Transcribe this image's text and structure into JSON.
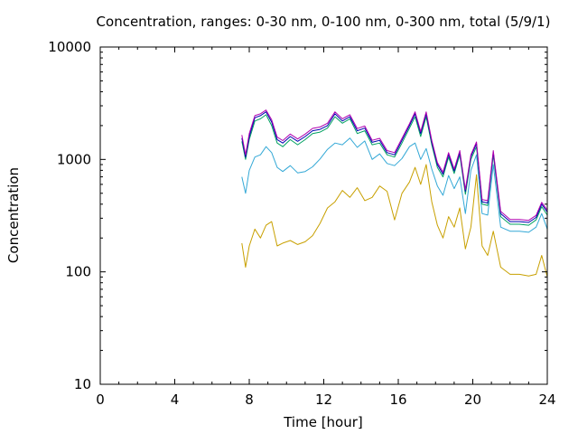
{
  "chart_data": {
    "type": "line",
    "title": "Concentration, ranges: 0-30 nm, 0-100 nm, 0-300 nm, total (5/9/1)",
    "xlabel": "Time [hour]",
    "ylabel": "Concentration",
    "xlim": [
      0,
      24
    ],
    "ylim": [
      10,
      10000
    ],
    "yscale": "log",
    "x_ticks": [
      0,
      4,
      8,
      12,
      16,
      20,
      24
    ],
    "x_tick_labels": [
      "0",
      "4",
      "8",
      "12",
      "16",
      "20",
      "24"
    ],
    "y_ticks": [
      10,
      100,
      1000,
      10000
    ],
    "y_tick_labels": [
      "10",
      "100",
      "1000",
      "10000"
    ],
    "grid": false,
    "legend": "none",
    "series": [
      {
        "color": "#c8a000",
        "x": [
          7.6,
          7.8,
          8.0,
          8.3,
          8.6,
          8.9,
          9.2,
          9.5,
          9.8,
          10.2,
          10.6,
          11.0,
          11.4,
          11.8,
          12.2,
          12.6,
          13.0,
          13.4,
          13.8,
          14.2,
          14.6,
          15.0,
          15.4,
          15.8,
          16.2,
          16.6,
          16.9,
          17.2,
          17.5,
          17.8,
          18.1,
          18.4,
          18.7,
          19.0,
          19.3,
          19.6,
          19.9,
          20.2,
          20.5,
          20.8,
          21.1,
          21.5,
          22.0,
          22.5,
          23.0,
          23.4,
          23.7,
          24.0
        ],
        "y": [
          180,
          110,
          170,
          240,
          200,
          260,
          280,
          170,
          180,
          190,
          175,
          185,
          210,
          270,
          370,
          420,
          530,
          460,
          560,
          430,
          460,
          580,
          520,
          290,
          500,
          630,
          850,
          600,
          900,
          420,
          260,
          200,
          310,
          250,
          370,
          160,
          250,
          730,
          170,
          140,
          230,
          110,
          95,
          95,
          92,
          95,
          140,
          90
        ]
      },
      {
        "color": "#33a8d6",
        "x": [
          7.6,
          7.8,
          8.0,
          8.3,
          8.6,
          8.9,
          9.2,
          9.5,
          9.8,
          10.2,
          10.6,
          11.0,
          11.4,
          11.8,
          12.2,
          12.6,
          13.0,
          13.4,
          13.8,
          14.2,
          14.6,
          15.0,
          15.4,
          15.8,
          16.2,
          16.6,
          16.9,
          17.2,
          17.5,
          17.8,
          18.1,
          18.4,
          18.7,
          19.0,
          19.3,
          19.6,
          19.9,
          20.2,
          20.5,
          20.8,
          21.1,
          21.5,
          22.0,
          22.5,
          23.0,
          23.4,
          23.7,
          24.0
        ],
        "y": [
          700,
          500,
          800,
          1050,
          1100,
          1300,
          1150,
          850,
          780,
          880,
          760,
          780,
          860,
          1010,
          1230,
          1400,
          1350,
          1550,
          1280,
          1460,
          1000,
          1120,
          920,
          880,
          1020,
          1300,
          1400,
          1000,
          1250,
          820,
          580,
          480,
          720,
          550,
          700,
          330,
          800,
          1100,
          330,
          320,
          900,
          250,
          230,
          230,
          225,
          250,
          330,
          240
        ]
      },
      {
        "color": "#00a060",
        "x": [
          7.6,
          7.8,
          8.0,
          8.3,
          8.6,
          8.9,
          9.2,
          9.5,
          9.8,
          10.2,
          10.6,
          11.0,
          11.4,
          11.8,
          12.2,
          12.6,
          13.0,
          13.4,
          13.8,
          14.2,
          14.6,
          15.0,
          15.4,
          15.8,
          16.2,
          16.6,
          16.9,
          17.2,
          17.5,
          17.8,
          18.1,
          18.4,
          18.7,
          19.0,
          19.3,
          19.6,
          19.9,
          20.2,
          20.5,
          20.8,
          21.1,
          21.5,
          22.0,
          22.5,
          23.0,
          23.4,
          23.7,
          24.0
        ],
        "y": [
          1450,
          1000,
          1500,
          2200,
          2300,
          2500,
          2000,
          1400,
          1300,
          1500,
          1350,
          1500,
          1700,
          1750,
          1900,
          2400,
          2100,
          2300,
          1700,
          1800,
          1350,
          1400,
          1100,
          1050,
          1400,
          1900,
          2400,
          1600,
          2400,
          1350,
          850,
          700,
          1050,
          750,
          1100,
          490,
          1000,
          1300,
          400,
          390,
          1100,
          310,
          265,
          265,
          260,
          290,
          380,
          320
        ]
      },
      {
        "color": "#0000b0",
        "x": [
          7.6,
          7.8,
          8.0,
          8.3,
          8.6,
          8.9,
          9.2,
          9.5,
          9.8,
          10.2,
          10.6,
          11.0,
          11.4,
          11.8,
          12.2,
          12.6,
          13.0,
          13.4,
          13.8,
          14.2,
          14.6,
          15.0,
          15.4,
          15.8,
          16.2,
          16.6,
          16.9,
          17.2,
          17.5,
          17.8,
          18.1,
          18.4,
          18.7,
          19.0,
          19.3,
          19.6,
          19.9,
          20.2,
          20.5,
          20.8,
          21.1,
          21.5,
          22.0,
          22.5,
          23.0,
          23.4,
          23.7,
          24.0
        ],
        "y": [
          1550,
          1050,
          1600,
          2350,
          2450,
          2650,
          2150,
          1500,
          1400,
          1600,
          1450,
          1600,
          1800,
          1850,
          2000,
          2550,
          2200,
          2400,
          1800,
          1900,
          1420,
          1480,
          1150,
          1100,
          1480,
          2000,
          2550,
          1700,
          2550,
          1420,
          900,
          740,
          1110,
          790,
          1160,
          520,
          1060,
          1380,
          420,
          410,
          1160,
          330,
          280,
          280,
          275,
          305,
          400,
          340
        ]
      },
      {
        "color": "#b000b0",
        "x": [
          7.6,
          7.8,
          8.0,
          8.3,
          8.6,
          8.9,
          9.2,
          9.5,
          9.8,
          10.2,
          10.6,
          11.0,
          11.4,
          11.8,
          12.2,
          12.6,
          13.0,
          13.4,
          13.8,
          14.2,
          14.6,
          15.0,
          15.4,
          15.8,
          16.2,
          16.6,
          16.9,
          17.2,
          17.5,
          17.8,
          18.1,
          18.4,
          18.7,
          19.0,
          19.3,
          19.6,
          19.9,
          20.2,
          20.5,
          20.8,
          21.1,
          21.5,
          22.0,
          22.5,
          23.0,
          23.4,
          23.7,
          24.0
        ],
        "y": [
          1650,
          1100,
          1700,
          2450,
          2550,
          2750,
          2250,
          1580,
          1470,
          1680,
          1520,
          1680,
          1890,
          1940,
          2100,
          2650,
          2300,
          2500,
          1880,
          1980,
          1480,
          1540,
          1200,
          1150,
          1540,
          2080,
          2650,
          1770,
          2650,
          1480,
          940,
          770,
          1150,
          820,
          1200,
          540,
          1100,
          1430,
          440,
          430,
          1200,
          345,
          292,
          292,
          287,
          318,
          415,
          355
        ]
      }
    ]
  }
}
